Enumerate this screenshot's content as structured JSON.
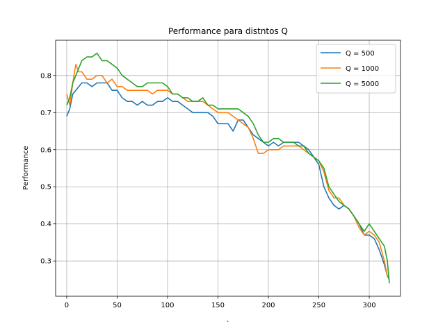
{
  "chart_data": {
    "type": "line",
    "title": "Performance para distntos Q",
    "xlabel": "`",
    "ylabel": "Performance",
    "xlim": [
      -11,
      331
    ],
    "ylim": [
      0.205,
      0.895
    ],
    "xticks": [
      0,
      50,
      100,
      150,
      200,
      250,
      300
    ],
    "yticks": [
      0.3,
      0.4,
      0.5,
      0.6,
      0.7,
      0.8
    ],
    "grid": true,
    "legend_position": "upper right",
    "series": [
      {
        "name": "Q = 500",
        "color": "#1f77b4",
        "points": [
          [
            0,
            0.69
          ],
          [
            3,
            0.71
          ],
          [
            6,
            0.75
          ],
          [
            9,
            0.76
          ],
          [
            12,
            0.77
          ],
          [
            15,
            0.78
          ],
          [
            20,
            0.78
          ],
          [
            25,
            0.77
          ],
          [
            30,
            0.78
          ],
          [
            35,
            0.78
          ],
          [
            40,
            0.78
          ],
          [
            45,
            0.76
          ],
          [
            50,
            0.76
          ],
          [
            55,
            0.74
          ],
          [
            60,
            0.73
          ],
          [
            65,
            0.73
          ],
          [
            70,
            0.72
          ],
          [
            75,
            0.73
          ],
          [
            80,
            0.72
          ],
          [
            85,
            0.72
          ],
          [
            90,
            0.73
          ],
          [
            95,
            0.73
          ],
          [
            100,
            0.74
          ],
          [
            105,
            0.73
          ],
          [
            110,
            0.73
          ],
          [
            115,
            0.72
          ],
          [
            120,
            0.71
          ],
          [
            125,
            0.7
          ],
          [
            130,
            0.7
          ],
          [
            135,
            0.7
          ],
          [
            140,
            0.7
          ],
          [
            145,
            0.69
          ],
          [
            150,
            0.67
          ],
          [
            155,
            0.67
          ],
          [
            160,
            0.67
          ],
          [
            165,
            0.65
          ],
          [
            170,
            0.68
          ],
          [
            175,
            0.68
          ],
          [
            180,
            0.66
          ],
          [
            185,
            0.64
          ],
          [
            190,
            0.63
          ],
          [
            195,
            0.62
          ],
          [
            200,
            0.61
          ],
          [
            205,
            0.62
          ],
          [
            210,
            0.61
          ],
          [
            215,
            0.62
          ],
          [
            220,
            0.62
          ],
          [
            225,
            0.62
          ],
          [
            230,
            0.62
          ],
          [
            235,
            0.61
          ],
          [
            240,
            0.6
          ],
          [
            245,
            0.58
          ],
          [
            250,
            0.56
          ],
          [
            255,
            0.5
          ],
          [
            260,
            0.47
          ],
          [
            265,
            0.45
          ],
          [
            270,
            0.44
          ],
          [
            275,
            0.45
          ],
          [
            280,
            0.44
          ],
          [
            285,
            0.42
          ],
          [
            290,
            0.4
          ],
          [
            295,
            0.37
          ],
          [
            300,
            0.37
          ],
          [
            305,
            0.36
          ],
          [
            310,
            0.33
          ],
          [
            315,
            0.29
          ],
          [
            318,
            0.26
          ],
          [
            320,
            0.25
          ]
        ]
      },
      {
        "name": "Q = 1000",
        "color": "#ff7f0e",
        "points": [
          [
            0,
            0.75
          ],
          [
            3,
            0.72
          ],
          [
            6,
            0.78
          ],
          [
            9,
            0.83
          ],
          [
            12,
            0.81
          ],
          [
            15,
            0.81
          ],
          [
            20,
            0.79
          ],
          [
            25,
            0.79
          ],
          [
            30,
            0.8
          ],
          [
            35,
            0.8
          ],
          [
            40,
            0.78
          ],
          [
            45,
            0.79
          ],
          [
            50,
            0.77
          ],
          [
            55,
            0.77
          ],
          [
            60,
            0.76
          ],
          [
            65,
            0.76
          ],
          [
            70,
            0.76
          ],
          [
            75,
            0.76
          ],
          [
            80,
            0.76
          ],
          [
            85,
            0.75
          ],
          [
            90,
            0.76
          ],
          [
            95,
            0.76
          ],
          [
            100,
            0.76
          ],
          [
            105,
            0.75
          ],
          [
            110,
            0.75
          ],
          [
            115,
            0.74
          ],
          [
            120,
            0.73
          ],
          [
            125,
            0.73
          ],
          [
            130,
            0.73
          ],
          [
            135,
            0.73
          ],
          [
            140,
            0.72
          ],
          [
            145,
            0.71
          ],
          [
            150,
            0.7
          ],
          [
            155,
            0.7
          ],
          [
            160,
            0.7
          ],
          [
            165,
            0.69
          ],
          [
            170,
            0.68
          ],
          [
            175,
            0.67
          ],
          [
            180,
            0.66
          ],
          [
            185,
            0.63
          ],
          [
            190,
            0.59
          ],
          [
            195,
            0.59
          ],
          [
            200,
            0.6
          ],
          [
            205,
            0.6
          ],
          [
            210,
            0.6
          ],
          [
            215,
            0.61
          ],
          [
            220,
            0.61
          ],
          [
            225,
            0.61
          ],
          [
            230,
            0.61
          ],
          [
            235,
            0.6
          ],
          [
            240,
            0.59
          ],
          [
            245,
            0.58
          ],
          [
            250,
            0.57
          ],
          [
            255,
            0.54
          ],
          [
            260,
            0.49
          ],
          [
            265,
            0.47
          ],
          [
            270,
            0.47
          ],
          [
            275,
            0.45
          ],
          [
            280,
            0.44
          ],
          [
            285,
            0.42
          ],
          [
            290,
            0.39
          ],
          [
            295,
            0.37
          ],
          [
            300,
            0.38
          ],
          [
            305,
            0.37
          ],
          [
            310,
            0.35
          ],
          [
            315,
            0.3
          ],
          [
            318,
            0.26
          ],
          [
            320,
            0.26
          ]
        ]
      },
      {
        "name": "Q = 5000",
        "color": "#2ca02c",
        "points": [
          [
            0,
            0.72
          ],
          [
            3,
            0.74
          ],
          [
            6,
            0.78
          ],
          [
            9,
            0.8
          ],
          [
            12,
            0.82
          ],
          [
            15,
            0.84
          ],
          [
            20,
            0.85
          ],
          [
            25,
            0.85
          ],
          [
            30,
            0.86
          ],
          [
            35,
            0.84
          ],
          [
            40,
            0.84
          ],
          [
            45,
            0.83
          ],
          [
            50,
            0.82
          ],
          [
            55,
            0.8
          ],
          [
            60,
            0.79
          ],
          [
            65,
            0.78
          ],
          [
            70,
            0.77
          ],
          [
            75,
            0.77
          ],
          [
            80,
            0.78
          ],
          [
            85,
            0.78
          ],
          [
            90,
            0.78
          ],
          [
            95,
            0.78
          ],
          [
            100,
            0.77
          ],
          [
            105,
            0.75
          ],
          [
            110,
            0.75
          ],
          [
            115,
            0.74
          ],
          [
            120,
            0.74
          ],
          [
            125,
            0.73
          ],
          [
            130,
            0.73
          ],
          [
            135,
            0.74
          ],
          [
            140,
            0.72
          ],
          [
            145,
            0.72
          ],
          [
            150,
            0.71
          ],
          [
            155,
            0.71
          ],
          [
            160,
            0.71
          ],
          [
            165,
            0.71
          ],
          [
            170,
            0.71
          ],
          [
            175,
            0.7
          ],
          [
            180,
            0.69
          ],
          [
            185,
            0.67
          ],
          [
            190,
            0.64
          ],
          [
            195,
            0.62
          ],
          [
            200,
            0.62
          ],
          [
            205,
            0.63
          ],
          [
            210,
            0.63
          ],
          [
            215,
            0.62
          ],
          [
            220,
            0.62
          ],
          [
            225,
            0.62
          ],
          [
            230,
            0.61
          ],
          [
            235,
            0.61
          ],
          [
            240,
            0.59
          ],
          [
            245,
            0.58
          ],
          [
            250,
            0.57
          ],
          [
            255,
            0.55
          ],
          [
            260,
            0.5
          ],
          [
            265,
            0.48
          ],
          [
            270,
            0.46
          ],
          [
            275,
            0.45
          ],
          [
            280,
            0.44
          ],
          [
            285,
            0.42
          ],
          [
            290,
            0.4
          ],
          [
            295,
            0.38
          ],
          [
            300,
            0.4
          ],
          [
            305,
            0.38
          ],
          [
            310,
            0.36
          ],
          [
            315,
            0.34
          ],
          [
            318,
            0.3
          ],
          [
            320,
            0.24
          ]
        ]
      }
    ]
  }
}
